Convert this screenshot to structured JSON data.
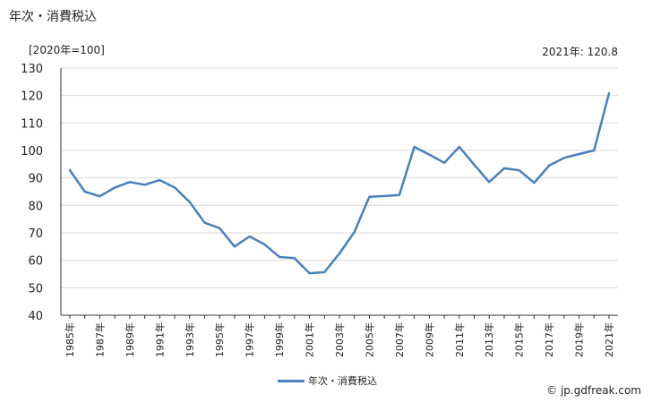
{
  "title": "年次・消費税込",
  "unit_label": "[2020年=100]",
  "latest_value_label": "2021年: 120.8",
  "source": "© jp.gdfreak.com",
  "colors": {
    "line": "#4a7fbd",
    "grid": "#d9d9d9",
    "axis": "#333333"
  },
  "chart_data": {
    "type": "line",
    "x": [
      "1985年",
      "1986年",
      "1987年",
      "1988年",
      "1989年",
      "1990年",
      "1991年",
      "1992年",
      "1993年",
      "1994年",
      "1995年",
      "1996年",
      "1997年",
      "1998年",
      "1999年",
      "2000年",
      "2001年",
      "2002年",
      "2003年",
      "2004年",
      "2005年",
      "2006年",
      "2007年",
      "2008年",
      "2009年",
      "2010年",
      "2011年",
      "2012年",
      "2013年",
      "2014年",
      "2015年",
      "2016年",
      "2017年",
      "2018年",
      "2019年",
      "2020年",
      "2021年"
    ],
    "x_tick_labels": [
      "1985年",
      "1987年",
      "1989年",
      "1991年",
      "1993年",
      "1995年",
      "1997年",
      "1999年",
      "2001年",
      "2003年",
      "2005年",
      "2007年",
      "2009年",
      "2011年",
      "2013年",
      "2015年",
      "2017年",
      "2019年",
      "2021年"
    ],
    "series": [
      {
        "name": "年次・消費税込",
        "values": [
          92.8,
          85.0,
          83.3,
          86.5,
          88.5,
          87.5,
          89.2,
          86.5,
          81.2,
          73.7,
          71.7,
          65.0,
          68.7,
          65.8,
          61.2,
          60.8,
          55.3,
          55.7,
          62.5,
          70.3,
          83.1,
          83.4,
          83.8,
          101.3,
          98.5,
          95.5,
          101.3,
          94.8,
          88.5,
          93.5,
          92.8,
          88.2,
          94.5,
          97.3,
          98.7,
          100.0,
          120.8
        ]
      }
    ],
    "y_ticks": [
      40,
      50,
      60,
      70,
      80,
      90,
      100,
      110,
      120,
      130
    ],
    "ylim": [
      40,
      130
    ],
    "grid": true,
    "legend_position": "bottom"
  }
}
